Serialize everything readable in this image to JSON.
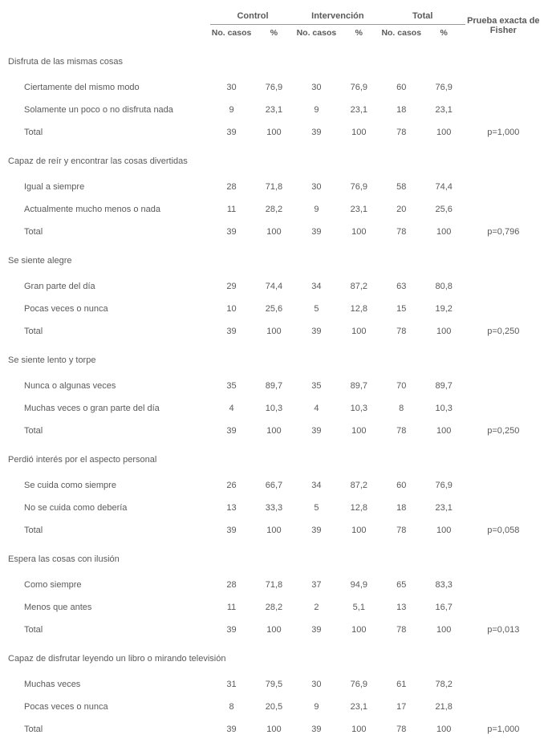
{
  "headers": {
    "control": "Control",
    "intervencion": "Intervención",
    "total": "Total",
    "fisher": "Prueba exacta de Fisher",
    "no_casos": "No. casos",
    "pct": "%"
  },
  "sections": [
    {
      "title": "Disfruta de las mismas cosas",
      "rows": [
        {
          "label": "Ciertamente del mismo modo",
          "c_n": "30",
          "c_p": "76,9",
          "i_n": "30",
          "i_p": "76,9",
          "t_n": "60",
          "t_p": "76,9",
          "f": ""
        },
        {
          "label": "Solamente un poco o no disfruta nada",
          "c_n": "9",
          "c_p": "23,1",
          "i_n": "9",
          "i_p": "23,1",
          "t_n": "18",
          "t_p": "23,1",
          "f": ""
        },
        {
          "label": "Total",
          "c_n": "39",
          "c_p": "100",
          "i_n": "39",
          "i_p": "100",
          "t_n": "78",
          "t_p": "100",
          "f": "p=1,000"
        }
      ]
    },
    {
      "title": "Capaz de reír y encontrar las cosas divertidas",
      "rows": [
        {
          "label": "Igual a siempre",
          "c_n": "28",
          "c_p": "71,8",
          "i_n": "30",
          "i_p": "76,9",
          "t_n": "58",
          "t_p": "74,4",
          "f": ""
        },
        {
          "label": "Actualmente mucho menos o nada",
          "c_n": "11",
          "c_p": "28,2",
          "i_n": "9",
          "i_p": "23,1",
          "t_n": "20",
          "t_p": "25,6",
          "f": ""
        },
        {
          "label": "Total",
          "c_n": "39",
          "c_p": "100",
          "i_n": "39",
          "i_p": "100",
          "t_n": "78",
          "t_p": "100",
          "f": "p=0,796"
        }
      ]
    },
    {
      "title": "Se siente alegre",
      "rows": [
        {
          "label": "Gran parte del día",
          "c_n": "29",
          "c_p": "74,4",
          "i_n": "34",
          "i_p": "87,2",
          "t_n": "63",
          "t_p": "80,8",
          "f": ""
        },
        {
          "label": "Pocas veces o nunca",
          "c_n": "10",
          "c_p": "25,6",
          "i_n": "5",
          "i_p": "12,8",
          "t_n": "15",
          "t_p": "19,2",
          "f": ""
        },
        {
          "label": "Total",
          "c_n": "39",
          "c_p": "100",
          "i_n": "39",
          "i_p": "100",
          "t_n": "78",
          "t_p": "100",
          "f": "p=0,250"
        }
      ]
    },
    {
      "title": "Se siente lento y torpe",
      "rows": [
        {
          "label": "Nunca o algunas veces",
          "c_n": "35",
          "c_p": "89,7",
          "i_n": "35",
          "i_p": "89,7",
          "t_n": "70",
          "t_p": "89,7",
          "f": ""
        },
        {
          "label": "Muchas veces o gran parte del día",
          "c_n": "4",
          "c_p": "10,3",
          "i_n": "4",
          "i_p": "10,3",
          "t_n": "8",
          "t_p": "10,3",
          "f": ""
        },
        {
          "label": "Total",
          "c_n": "39",
          "c_p": "100",
          "i_n": "39",
          "i_p": "100",
          "t_n": "78",
          "t_p": "100",
          "f": "p=0,250"
        }
      ]
    },
    {
      "title": "Perdió interés por el aspecto personal",
      "rows": [
        {
          "label": "Se cuida como siempre",
          "c_n": "26",
          "c_p": "66,7",
          "i_n": "34",
          "i_p": "87,2",
          "t_n": "60",
          "t_p": "76,9",
          "f": ""
        },
        {
          "label": "No se cuida como debería",
          "c_n": "13",
          "c_p": "33,3",
          "i_n": "5",
          "i_p": "12,8",
          "t_n": "18",
          "t_p": "23,1",
          "f": ""
        },
        {
          "label": "Total",
          "c_n": "39",
          "c_p": "100",
          "i_n": "39",
          "i_p": "100",
          "t_n": "78",
          "t_p": "100",
          "f": "p=0,058"
        }
      ]
    },
    {
      "title": "Espera las cosas con ilusión",
      "rows": [
        {
          "label": "Como siempre",
          "c_n": "28",
          "c_p": "71,8",
          "i_n": "37",
          "i_p": "94,9",
          "t_n": "65",
          "t_p": "83,3",
          "f": ""
        },
        {
          "label": "Menos que antes",
          "c_n": "11",
          "c_p": "28,2",
          "i_n": "2",
          "i_p": "5,1",
          "t_n": "13",
          "t_p": "16,7",
          "f": ""
        },
        {
          "label": "Total",
          "c_n": "39",
          "c_p": "100",
          "i_n": "39",
          "i_p": "100",
          "t_n": "78",
          "t_p": "100",
          "f": "p=0,013"
        }
      ]
    },
    {
      "title": "Capaz de disfrutar leyendo un libro o mirando televisión",
      "rows": [
        {
          "label": "Muchas veces",
          "c_n": "31",
          "c_p": "79,5",
          "i_n": "30",
          "i_p": "76,9",
          "t_n": "61",
          "t_p": "78,2",
          "f": ""
        },
        {
          "label": "Pocas veces o nunca",
          "c_n": "8",
          "c_p": "20,5",
          "i_n": "9",
          "i_p": "23,1",
          "t_n": "17",
          "t_p": "21,8",
          "f": ""
        },
        {
          "label": "Total",
          "c_n": "39",
          "c_p": "100",
          "i_n": "39",
          "i_p": "100",
          "t_n": "78",
          "t_p": "100",
          "f": "p=1,000"
        }
      ]
    }
  ]
}
